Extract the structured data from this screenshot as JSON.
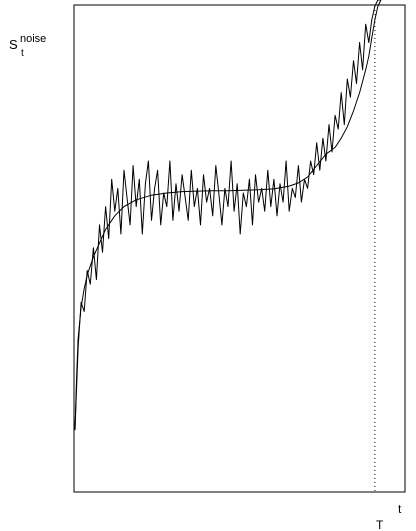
{
  "chart_data": {
    "type": "line",
    "title": "",
    "ylabel": {
      "main": "S",
      "sup": "noise",
      "sub": "t"
    },
    "xlabel": "t",
    "marker_label": "T",
    "x_range": [
      0,
      1
    ],
    "y_range": [
      0,
      1
    ],
    "grid": false,
    "legend": "none",
    "marker_x": 0.98,
    "series": [
      {
        "style": "smooth",
        "x": [
          0,
          0.005,
          0.01,
          0.02,
          0.03,
          0.04,
          0.06,
          0.08,
          0.1,
          0.13,
          0.16,
          0.2,
          0.25,
          0.3,
          0.35,
          0.4,
          0.45,
          0.5,
          0.55,
          0.6,
          0.65,
          0.7,
          0.73,
          0.76,
          0.79,
          0.82,
          0.85,
          0.87,
          0.89,
          0.91,
          0.93,
          0.95,
          0.96,
          0.97,
          0.98,
          0.99,
          1.0
        ],
        "y": [
          0.07,
          0.18,
          0.27,
          0.34,
          0.38,
          0.41,
          0.45,
          0.48,
          0.51,
          0.54,
          0.56,
          0.575,
          0.585,
          0.59,
          0.593,
          0.594,
          0.595,
          0.595,
          0.596,
          0.597,
          0.599,
          0.605,
          0.612,
          0.625,
          0.65,
          0.675,
          0.69,
          0.71,
          0.735,
          0.77,
          0.81,
          0.86,
          0.89,
          0.93,
          0.97,
          1.0,
          1.02
        ]
      },
      {
        "style": "noisy",
        "x": [
          0,
          0.01,
          0.02,
          0.03,
          0.04,
          0.05,
          0.06,
          0.07,
          0.08,
          0.09,
          0.1,
          0.11,
          0.12,
          0.13,
          0.14,
          0.15,
          0.16,
          0.17,
          0.18,
          0.19,
          0.2,
          0.21,
          0.22,
          0.23,
          0.24,
          0.25,
          0.26,
          0.27,
          0.28,
          0.29,
          0.3,
          0.31,
          0.32,
          0.33,
          0.34,
          0.35,
          0.36,
          0.37,
          0.38,
          0.39,
          0.4,
          0.41,
          0.42,
          0.43,
          0.44,
          0.45,
          0.46,
          0.47,
          0.48,
          0.49,
          0.5,
          0.51,
          0.52,
          0.53,
          0.54,
          0.55,
          0.56,
          0.57,
          0.58,
          0.59,
          0.6,
          0.61,
          0.62,
          0.63,
          0.64,
          0.65,
          0.66,
          0.67,
          0.68,
          0.69,
          0.7,
          0.71,
          0.72,
          0.73,
          0.74,
          0.75,
          0.76,
          0.77,
          0.78,
          0.79,
          0.8,
          0.81,
          0.82,
          0.83,
          0.84,
          0.85,
          0.86,
          0.87,
          0.88,
          0.89,
          0.9,
          0.91,
          0.92,
          0.93,
          0.94,
          0.95,
          0.96,
          0.97,
          0.98,
          0.99,
          1.0
        ],
        "y": [
          0.07,
          0.25,
          0.35,
          0.33,
          0.42,
          0.39,
          0.47,
          0.4,
          0.52,
          0.46,
          0.56,
          0.49,
          0.62,
          0.55,
          0.6,
          0.5,
          0.64,
          0.58,
          0.52,
          0.65,
          0.56,
          0.62,
          0.5,
          0.61,
          0.66,
          0.53,
          0.6,
          0.64,
          0.52,
          0.59,
          0.56,
          0.66,
          0.53,
          0.61,
          0.55,
          0.63,
          0.58,
          0.53,
          0.64,
          0.56,
          0.6,
          0.52,
          0.63,
          0.57,
          0.6,
          0.54,
          0.65,
          0.59,
          0.52,
          0.6,
          0.56,
          0.66,
          0.55,
          0.61,
          0.5,
          0.59,
          0.56,
          0.62,
          0.52,
          0.63,
          0.57,
          0.6,
          0.55,
          0.64,
          0.56,
          0.62,
          0.54,
          0.61,
          0.57,
          0.66,
          0.55,
          0.6,
          0.58,
          0.65,
          0.57,
          0.62,
          0.6,
          0.66,
          0.63,
          0.7,
          0.64,
          0.71,
          0.66,
          0.74,
          0.68,
          0.76,
          0.73,
          0.81,
          0.74,
          0.84,
          0.8,
          0.88,
          0.83,
          0.92,
          0.86,
          0.96,
          0.92,
          0.97,
          1.0,
          1.02,
          1.03
        ]
      }
    ]
  }
}
